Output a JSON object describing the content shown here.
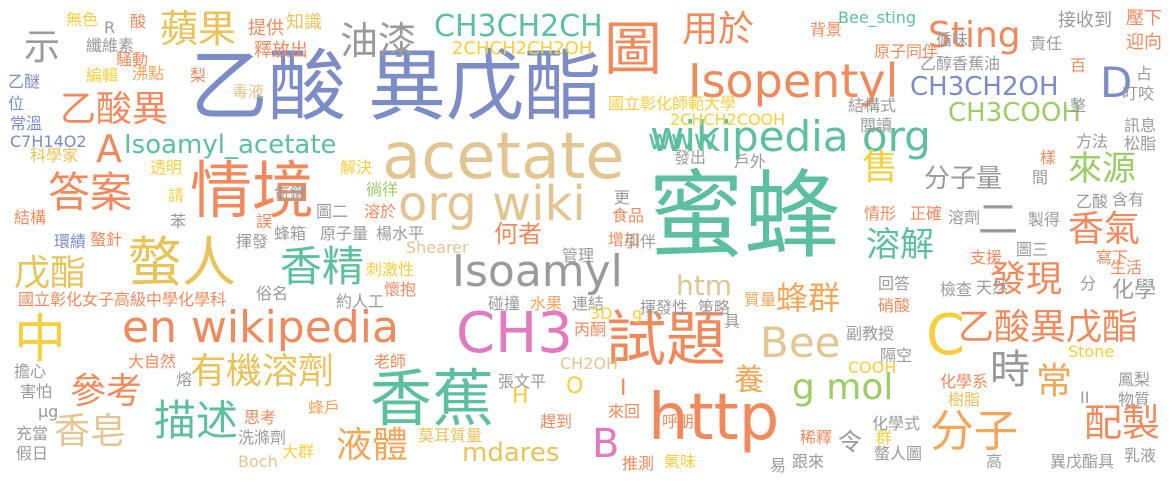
{
  "colors": {
    "coral": "#f08a5d",
    "gold": "#e8c35a",
    "sand": "#e3c591",
    "teal": "#5cbf9f",
    "slate_blue": "#7b8cc7",
    "gray": "#9a9a9a",
    "green": "#9ccc65",
    "pink": "#e07bbf",
    "yellow": "#f6cf3f",
    "orange": "#f2a65a"
  },
  "words": [
    {
      "text": "蜜蜂",
      "color": "#5cbf9f"
    },
    {
      "text": "乙酸",
      "color": "#7b8cc7"
    },
    {
      "text": "異戊酯",
      "color": "#7b8cc7"
    },
    {
      "text": "acetate",
      "color": "#e3c591"
    },
    {
      "text": "情境",
      "color": "#f08a5d"
    },
    {
      "text": "http",
      "color": "#f08a5d"
    },
    {
      "text": "香蕉",
      "color": "#5cbf9f"
    },
    {
      "text": "螫人",
      "color": "#e8c35a"
    },
    {
      "text": "中",
      "color": "#f6cf3f"
    },
    {
      "text": "en wikipedia",
      "color": "#f08a5d"
    },
    {
      "text": "CH3",
      "color": "#e07bbf"
    },
    {
      "text": "試題",
      "color": "#f08a5d"
    },
    {
      "text": "Isoamyl",
      "color": "#9a9a9a"
    },
    {
      "text": "wikipedia org",
      "color": "#5cbf9f"
    },
    {
      "text": "org wiki",
      "color": "#e3c591"
    },
    {
      "text": "圖",
      "color": "#f08a5d"
    },
    {
      "text": "Isopentyl",
      "color": "#f08a5d"
    },
    {
      "text": "答案",
      "color": "#f08a5d"
    },
    {
      "text": "描述",
      "color": "#5cbf9f"
    },
    {
      "text": "分子",
      "color": "#f2a65a"
    },
    {
      "text": "C",
      "color": "#f6cf3f"
    },
    {
      "text": "Bee",
      "color": "#e3c591"
    },
    {
      "text": "有機溶劑",
      "color": "#e8c35a"
    },
    {
      "text": "香精",
      "color": "#5cbf9f"
    },
    {
      "text": "乙酸異戊酯",
      "color": "#f08a5d"
    },
    {
      "text": "g mol",
      "color": "#9ccc65"
    },
    {
      "text": "乙酸異",
      "color": "#f08a5d"
    },
    {
      "text": "蘋果",
      "color": "#e8c35a"
    },
    {
      "text": "油漆",
      "color": "#9a9a9a"
    },
    {
      "text": "CH3CH2CH",
      "color": "#5cbf9f"
    },
    {
      "text": "用於",
      "color": "#f08a5d"
    },
    {
      "text": "Sting",
      "color": "#f08a5d"
    },
    {
      "text": "D",
      "color": "#7b8cc7"
    },
    {
      "text": "CH3CH2OH",
      "color": "#7b8cc7"
    },
    {
      "text": "CH3COOH",
      "color": "#9ccc65"
    },
    {
      "text": "Isoamyl_acetate",
      "color": "#5cbf9f"
    },
    {
      "text": "A",
      "color": "#f08a5d"
    },
    {
      "text": "戊酯",
      "color": "#e8c35a"
    },
    {
      "text": "參考",
      "color": "#f08a5d"
    },
    {
      "text": "香皂",
      "color": "#e3c591"
    },
    {
      "text": "液體",
      "color": "#f2a65a"
    },
    {
      "text": "mdares",
      "color": "#e8c35a"
    },
    {
      "text": "B",
      "color": "#e07bbf"
    },
    {
      "text": "時",
      "color": "#9a9a9a"
    },
    {
      "text": "常",
      "color": "#f2a65a"
    },
    {
      "text": "配製",
      "color": "#f08a5d"
    },
    {
      "text": "溶解",
      "color": "#5cbf9f"
    },
    {
      "text": "香氣",
      "color": "#f08a5d"
    },
    {
      "text": "來源",
      "color": "#9ccc65"
    },
    {
      "text": "發現",
      "color": "#f08a5d"
    },
    {
      "text": "蜂群",
      "color": "#f2a65a"
    },
    {
      "text": "何者",
      "color": "#f08a5d"
    },
    {
      "text": "分子量",
      "color": "#9a9a9a"
    },
    {
      "text": "售",
      "color": "#f6cf3f"
    },
    {
      "text": "養",
      "color": "#f2a65a"
    },
    {
      "text": "示",
      "color": "#9a9a9a"
    },
    {
      "text": "二",
      "color": "#9a9a9a"
    },
    {
      "text": "化學",
      "color": "#9a9a9a"
    },
    {
      "text": "www",
      "color": "#5cbf9f"
    },
    {
      "text": "htm",
      "color": "#e3c591"
    },
    {
      "text": "2CHCH2CH2OH",
      "color": "#f6cf3f"
    },
    {
      "text": "2CHCH2COOH",
      "color": "#f6cf3f"
    },
    {
      "text": "國立彰化師範大學",
      "color": "#f6cf3f"
    },
    {
      "text": "國立彰化女子高級中學化學科",
      "color": "#f08a5d"
    },
    {
      "text": "Bee_sting",
      "color": "#5cbf9f"
    },
    {
      "text": "接收到",
      "color": "#9a9a9a"
    },
    {
      "text": "壓下",
      "color": "#f08a5d"
    },
    {
      "text": "迎向",
      "color": "#f08a5d"
    },
    {
      "text": "乙醇香蕉油",
      "color": "#9a9a9a"
    },
    {
      "text": "結構式",
      "color": "#9a9a9a"
    },
    {
      "text": "閱讀",
      "color": "#9a9a9a"
    },
    {
      "text": "原子同伴",
      "color": "#f08a5d"
    },
    {
      "text": "責任",
      "color": "#9a9a9a"
    },
    {
      "text": "循味",
      "color": "#9a9a9a"
    },
    {
      "text": "背景",
      "color": "#f08a5d"
    },
    {
      "text": "知識",
      "color": "#e8c35a"
    },
    {
      "text": "提供",
      "color": "#f08a5d"
    },
    {
      "text": "釋放出",
      "color": "#f08a5d"
    },
    {
      "text": "無色",
      "color": "#f6cf3f"
    },
    {
      "text": "纖維素",
      "color": "#9a9a9a"
    },
    {
      "text": "騷動",
      "color": "#f08a5d"
    },
    {
      "text": "編輯",
      "color": "#f6cf3f"
    },
    {
      "text": "沸點",
      "color": "#f2a65a"
    },
    {
      "text": "毒液",
      "color": "#e3c591"
    },
    {
      "text": "乙醚",
      "color": "#7b8cc7"
    },
    {
      "text": "位",
      "color": "#7b8cc7"
    },
    {
      "text": "常溫",
      "color": "#7b8cc7"
    },
    {
      "text": "C7H14O2",
      "color": "#7b8cc7"
    },
    {
      "text": "科學家",
      "color": "#e8c35a"
    },
    {
      "text": "透明",
      "color": "#f6cf3f"
    },
    {
      "text": "解決",
      "color": "#f6cf3f"
    },
    {
      "text": "氫鍵",
      "color": "#9a9a9a"
    },
    {
      "text": "徜徉",
      "color": "#9ccc65"
    },
    {
      "text": "圖二",
      "color": "#9a9a9a"
    },
    {
      "text": "溶於",
      "color": "#f08a5d"
    },
    {
      "text": "蜂箱",
      "color": "#9a9a9a"
    },
    {
      "text": "原子量",
      "color": "#9a9a9a"
    },
    {
      "text": "楊水平",
      "color": "#9a9a9a"
    },
    {
      "text": "刺激性",
      "color": "#f6cf3f"
    },
    {
      "text": "懷抱",
      "color": "#f08a5d"
    },
    {
      "text": "約人工",
      "color": "#9a9a9a"
    },
    {
      "text": "碰撞",
      "color": "#9a9a9a"
    },
    {
      "text": "水果",
      "color": "#f2a65a"
    },
    {
      "text": "連結",
      "color": "#9a9a9a"
    },
    {
      "text": "揮發性",
      "color": "#9a9a9a"
    },
    {
      "text": "策略",
      "color": "#9a9a9a"
    },
    {
      "text": "質量",
      "color": "#f2a65a"
    },
    {
      "text": "副教授",
      "color": "#9a9a9a"
    },
    {
      "text": "隔空",
      "color": "#9a9a9a"
    },
    {
      "text": "鳳梨",
      "color": "#9a9a9a"
    },
    {
      "text": "物質",
      "color": "#9a9a9a"
    },
    {
      "text": "Stone",
      "color": "#f6cf3f"
    },
    {
      "text": "化學系",
      "color": "#f08a5d"
    },
    {
      "text": "樹脂",
      "color": "#e8c35a"
    },
    {
      "text": "化學式",
      "color": "#9a9a9a"
    },
    {
      "text": "螫人圖",
      "color": "#9a9a9a"
    },
    {
      "text": "稀釋",
      "color": "#f08a5d"
    },
    {
      "text": "跟來",
      "color": "#9a9a9a"
    },
    {
      "text": "異戊酯具",
      "color": "#9a9a9a"
    },
    {
      "text": "乳液",
      "color": "#9a9a9a"
    },
    {
      "text": "高",
      "color": "#9a9a9a"
    },
    {
      "text": "易",
      "color": "#9a9a9a"
    },
    {
      "text": "推測",
      "color": "#f08a5d"
    },
    {
      "text": "氣味",
      "color": "#f6cf3f"
    },
    {
      "text": "Boch",
      "color": "#e3c591"
    },
    {
      "text": "大群",
      "color": "#f6cf3f"
    },
    {
      "text": "洗滌劑",
      "color": "#9a9a9a"
    },
    {
      "text": "思考",
      "color": "#f08a5d"
    },
    {
      "text": "蜂戶",
      "color": "#f2a65a"
    },
    {
      "text": "莫耳質量",
      "color": "#e8c35a"
    },
    {
      "text": "張文平",
      "color": "#9a9a9a"
    },
    {
      "text": "趕到",
      "color": "#f08a5d"
    },
    {
      "text": "來回",
      "color": "#f08a5d"
    },
    {
      "text": "呼朋",
      "color": "#f08a5d"
    },
    {
      "text": "擔心",
      "color": "#9a9a9a"
    },
    {
      "text": "大自然",
      "color": "#f08a5d"
    },
    {
      "text": "害怕",
      "color": "#9a9a9a"
    },
    {
      "text": "μg",
      "color": "#9a9a9a"
    },
    {
      "text": "充當",
      "color": "#9a9a9a"
    },
    {
      "text": "假日",
      "color": "#9a9a9a"
    },
    {
      "text": "老師",
      "color": "#f08a5d"
    },
    {
      "text": "熔",
      "color": "#9a9a9a"
    },
    {
      "text": "結構",
      "color": "#f08a5d"
    },
    {
      "text": "環績",
      "color": "#7b8cc7"
    },
    {
      "text": "螯針",
      "color": "#f08a5d"
    },
    {
      "text": "請",
      "color": "#f6cf3f"
    },
    {
      "text": "苯",
      "color": "#9a9a9a"
    },
    {
      "text": "揮發",
      "color": "#9a9a9a"
    },
    {
      "text": "誤",
      "color": "#f08a5d"
    },
    {
      "text": "Shearer",
      "color": "#e3c591"
    },
    {
      "text": "管理",
      "color": "#9a9a9a"
    },
    {
      "text": "增加",
      "color": "#f08a5d"
    },
    {
      "text": "引伴",
      "color": "#9a9a9a"
    },
    {
      "text": "更",
      "color": "#9a9a9a"
    },
    {
      "text": "食品",
      "color": "#f08a5d"
    },
    {
      "text": "發出",
      "color": "#9a9a9a"
    },
    {
      "text": "戶外",
      "color": "#9a9a9a"
    },
    {
      "text": "情形",
      "color": "#f08a5d"
    },
    {
      "text": "正確",
      "color": "#f08a5d"
    },
    {
      "text": "溶劑",
      "color": "#9a9a9a"
    },
    {
      "text": "製得",
      "color": "#9a9a9a"
    },
    {
      "text": "含有",
      "color": "#9a9a9a"
    },
    {
      "text": "支援",
      "color": "#f08a5d"
    },
    {
      "text": "圖三",
      "color": "#9a9a9a"
    },
    {
      "text": "寫下",
      "color": "#f08a5d"
    },
    {
      "text": "生活",
      "color": "#f08a5d"
    },
    {
      "text": "回答",
      "color": "#9a9a9a"
    },
    {
      "text": "檢查",
      "color": "#9a9a9a"
    },
    {
      "text": "天然",
      "color": "#9a9a9a"
    },
    {
      "text": "硝酸",
      "color": "#f08a5d"
    },
    {
      "text": "方法",
      "color": "#9a9a9a"
    },
    {
      "text": "訊息",
      "color": "#9a9a9a"
    },
    {
      "text": "松脂",
      "color": "#9a9a9a"
    },
    {
      "text": "俗名",
      "color": "#9a9a9a"
    },
    {
      "text": "丙酮",
      "color": "#f08a5d"
    },
    {
      "text": "CH2OH",
      "color": "#e3c591"
    },
    {
      "text": "COOH",
      "color": "#f6cf3f"
    },
    {
      "text": "3D",
      "color": "#f6cf3f"
    },
    {
      "text": "g",
      "color": "#f6cf3f"
    },
    {
      "text": "具",
      "color": "#9a9a9a"
    },
    {
      "text": "H",
      "color": "#f6cf3f"
    },
    {
      "text": "O",
      "color": "#f6cf3f"
    },
    {
      "text": "I",
      "color": "#f08a5d"
    },
    {
      "text": "令",
      "color": "#9a9a9a"
    },
    {
      "text": "R",
      "color": "#9a9a9a"
    },
    {
      "text": "酸",
      "color": "#f08a5d"
    },
    {
      "text": "梨",
      "color": "#f08a5d"
    },
    {
      "text": "百",
      "color": "#f08a5d"
    },
    {
      "text": "占",
      "color": "#9a9a9a"
    },
    {
      "text": "叮咬",
      "color": "#9a9a9a"
    },
    {
      "text": "整",
      "color": "#9a9a9a"
    },
    {
      "text": "間",
      "color": "#9a9a9a"
    },
    {
      "text": "樣",
      "color": "#f08a5d"
    },
    {
      "text": "乙酸",
      "color": "#9a9a9a"
    },
    {
      "text": "群",
      "color": "#f6cf3f"
    },
    {
      "text": "分",
      "color": "#9a9a9a"
    },
    {
      "text": "II",
      "color": "#9a9a9a"
    }
  ]
}
